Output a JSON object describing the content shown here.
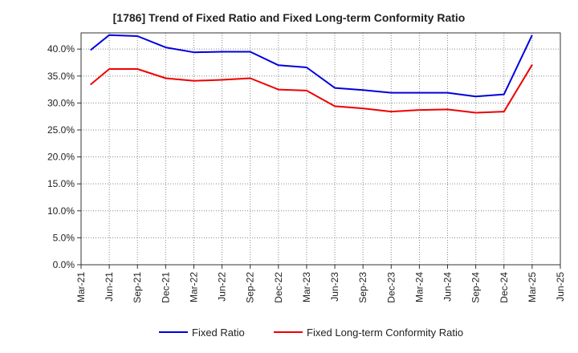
{
  "chart_data": {
    "type": "line",
    "title": "[1786]  Trend of Fixed Ratio and Fixed Long-term Conformity Ratio",
    "xlabel": "",
    "ylabel": "",
    "x_ticks": [
      "Mar-21",
      "Jun-21",
      "Sep-21",
      "Dec-21",
      "Mar-22",
      "Jun-22",
      "Sep-22",
      "Dec-22",
      "Mar-23",
      "Jun-23",
      "Sep-23",
      "Dec-23",
      "Mar-24",
      "Jun-24",
      "Sep-24",
      "Dec-24",
      "Mar-25",
      "Jun-25"
    ],
    "y_ticks": [
      "0.0%",
      "5.0%",
      "10.0%",
      "15.0%",
      "20.0%",
      "25.0%",
      "30.0%",
      "35.0%",
      "40.0%"
    ],
    "ylim": [
      0,
      43
    ],
    "grid": true,
    "legend_position": "bottom",
    "x": [
      "Apr-21",
      "Jun-21",
      "Sep-21",
      "Dec-21",
      "Mar-22",
      "Jun-22",
      "Sep-22",
      "Dec-22",
      "Mar-23",
      "Jun-23",
      "Sep-23",
      "Dec-23",
      "Mar-24",
      "Jun-24",
      "Sep-24",
      "Dec-24",
      "Mar-25"
    ],
    "series": [
      {
        "name": "Fixed Ratio",
        "color": "#0000dd",
        "values": [
          39.8,
          42.6,
          42.4,
          40.3,
          39.4,
          39.5,
          39.5,
          37.0,
          36.6,
          32.8,
          32.4,
          31.9,
          31.9,
          31.9,
          31.2,
          31.6,
          42.6
        ]
      },
      {
        "name": "Fixed Long-term Conformity Ratio",
        "color": "#ee0000",
        "values": [
          33.4,
          36.3,
          36.3,
          34.6,
          34.1,
          34.3,
          34.6,
          32.5,
          32.3,
          29.4,
          29.0,
          28.4,
          28.7,
          28.8,
          28.2,
          28.4,
          37.1
        ]
      }
    ]
  }
}
